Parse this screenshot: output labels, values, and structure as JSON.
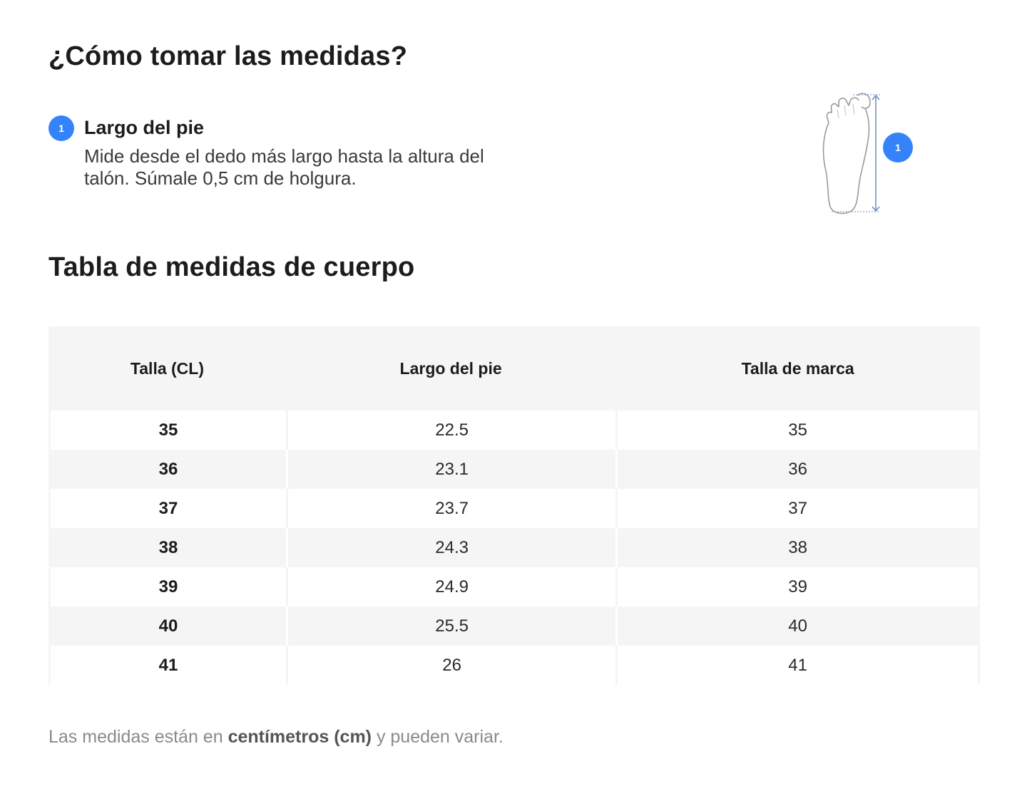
{
  "how_to": {
    "title": "¿Cómo tomar las medidas?",
    "step": {
      "number": "1",
      "title": "Largo del pie",
      "description": "Mide desde el dedo más largo hasta la altura del talón. Súmale 0,5 cm de holgura."
    },
    "illustration": {
      "icon": "foot-length-icon",
      "badge": "1"
    }
  },
  "table": {
    "title": "Tabla de medidas de cuerpo",
    "headers": [
      "Talla (CL)",
      "Largo del pie",
      "Talla de marca"
    ],
    "rows": [
      [
        "35",
        "22.5",
        "35"
      ],
      [
        "36",
        "23.1",
        "36"
      ],
      [
        "37",
        "23.7",
        "37"
      ],
      [
        "38",
        "24.3",
        "38"
      ],
      [
        "39",
        "24.9",
        "39"
      ],
      [
        "40",
        "25.5",
        "40"
      ],
      [
        "41",
        "26",
        "41"
      ]
    ]
  },
  "note": {
    "prefix": "Las medidas están en ",
    "bold": "centímetros (cm)",
    "suffix": " y pueden variar."
  },
  "colors": {
    "accent": "#3483fa",
    "table_bg": "#f5f5f5"
  }
}
